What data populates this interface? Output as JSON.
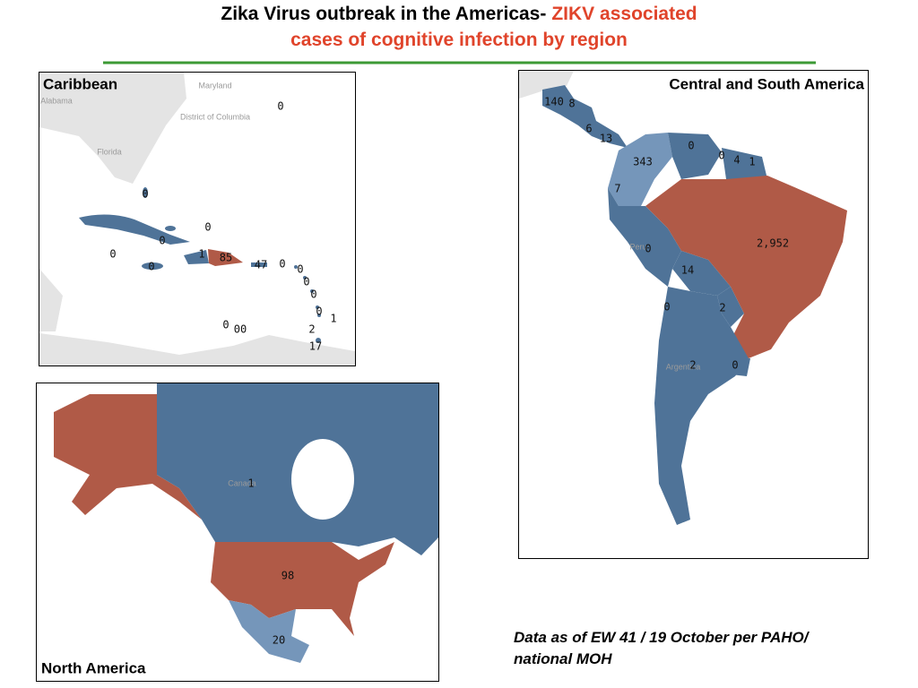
{
  "header": {
    "title_black": "Zika Virus outbreak in the Americas-",
    "title_red_1": "ZIKV associated",
    "title_red_2": "cases of cognitive infection by region"
  },
  "panels": [
    {
      "title": "Caribbean",
      "place_labels": [
        "Maryland",
        "Alabama",
        "District of Columbia",
        "Florida"
      ],
      "case_labels": [
        "0",
        "0",
        "0",
        "0",
        "0",
        "1",
        "85",
        "0",
        "47",
        "0",
        "0",
        "0",
        "0",
        "0",
        "1",
        "0",
        "00",
        "2",
        "17"
      ]
    },
    {
      "title": "Central and South America",
      "place_labels": [
        "Peru",
        "Argentina"
      ],
      "case_labels": [
        "140",
        "8",
        "6",
        "13",
        "0",
        "0",
        "4",
        "1",
        "343",
        "7",
        "0",
        "2,952",
        "14",
        "0",
        "2",
        "2",
        "0"
      ]
    },
    {
      "title": "North America",
      "place_labels": [
        "Canada"
      ],
      "case_labels": [
        "1",
        "98",
        "20"
      ]
    }
  ],
  "footnote": [
    "Data as of EW 41 / 19 October per PAHO/",
    "national MOH"
  ]
}
